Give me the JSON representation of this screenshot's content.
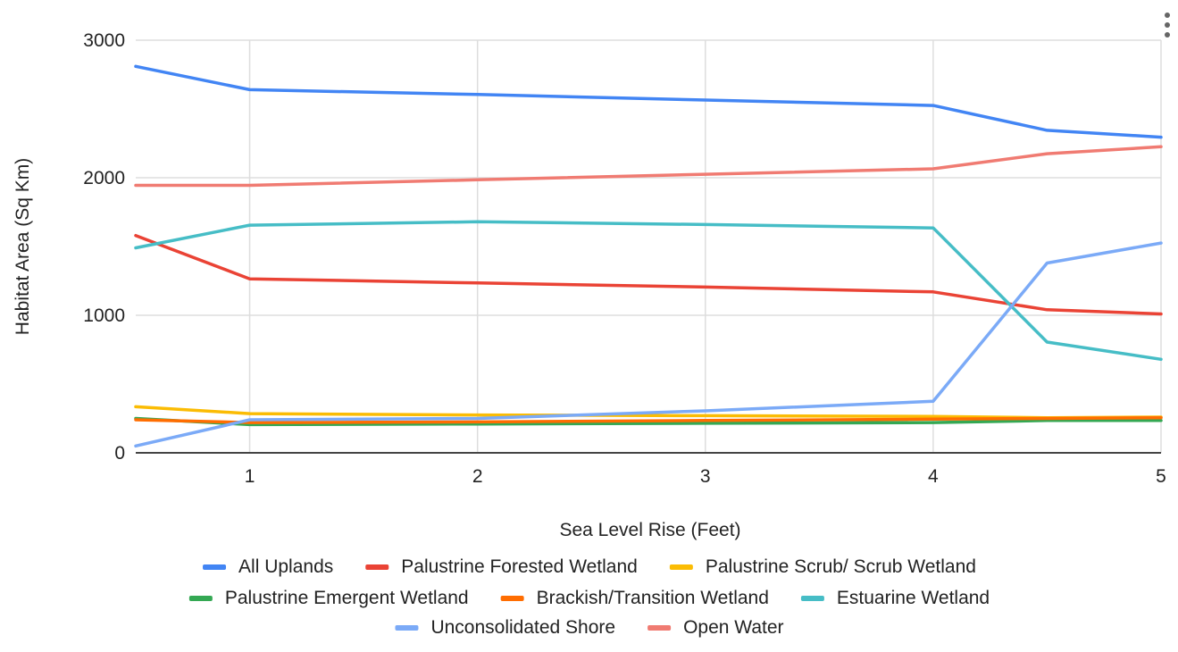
{
  "chart_data": {
    "type": "line",
    "title": "",
    "xlabel": "Sea Level Rise (Feet)",
    "ylabel": "Habitat Area (Sq Km)",
    "xlim": [
      0.5,
      5
    ],
    "ylim": [
      0,
      3000
    ],
    "x_ticks": [
      "1",
      "2",
      "3",
      "4",
      "5"
    ],
    "y_ticks": [
      "0",
      "1000",
      "2000",
      "3000"
    ],
    "grid": true,
    "legend_position": "bottom",
    "x": [
      0.5,
      1,
      2,
      3,
      4,
      4.5,
      5
    ],
    "series": [
      {
        "name": "All Uplands",
        "color": "#4285f4",
        "values": [
          2810,
          2640,
          2605,
          2565,
          2525,
          2345,
          2295
        ]
      },
      {
        "name": "Palustrine Forested Wetland",
        "color": "#ea4335",
        "values": [
          1580,
          1265,
          1235,
          1205,
          1170,
          1040,
          1010
        ]
      },
      {
        "name": "Palustrine Scrub/ Scrub Wetland",
        "color": "#fbbc04",
        "values": [
          335,
          285,
          275,
          270,
          265,
          255,
          260
        ]
      },
      {
        "name": "Palustrine Emergent Wetland",
        "color": "#34a853",
        "values": [
          250,
          205,
          210,
          215,
          220,
          235,
          235
        ]
      },
      {
        "name": "Brackish/Transition Wetland",
        "color": "#ff6d01",
        "values": [
          240,
          220,
          225,
          235,
          245,
          250,
          255
        ]
      },
      {
        "name": "Estuarine Wetland",
        "color": "#46bdc6",
        "values": [
          1490,
          1655,
          1680,
          1660,
          1635,
          805,
          680
        ]
      },
      {
        "name": "Unconsolidated Shore",
        "color": "#7baaf7",
        "values": [
          50,
          240,
          250,
          305,
          375,
          1380,
          1525
        ]
      },
      {
        "name": "Open Water",
        "color": "#f07b72",
        "values": [
          1945,
          1945,
          1985,
          2025,
          2065,
          2175,
          2225
        ]
      }
    ]
  }
}
